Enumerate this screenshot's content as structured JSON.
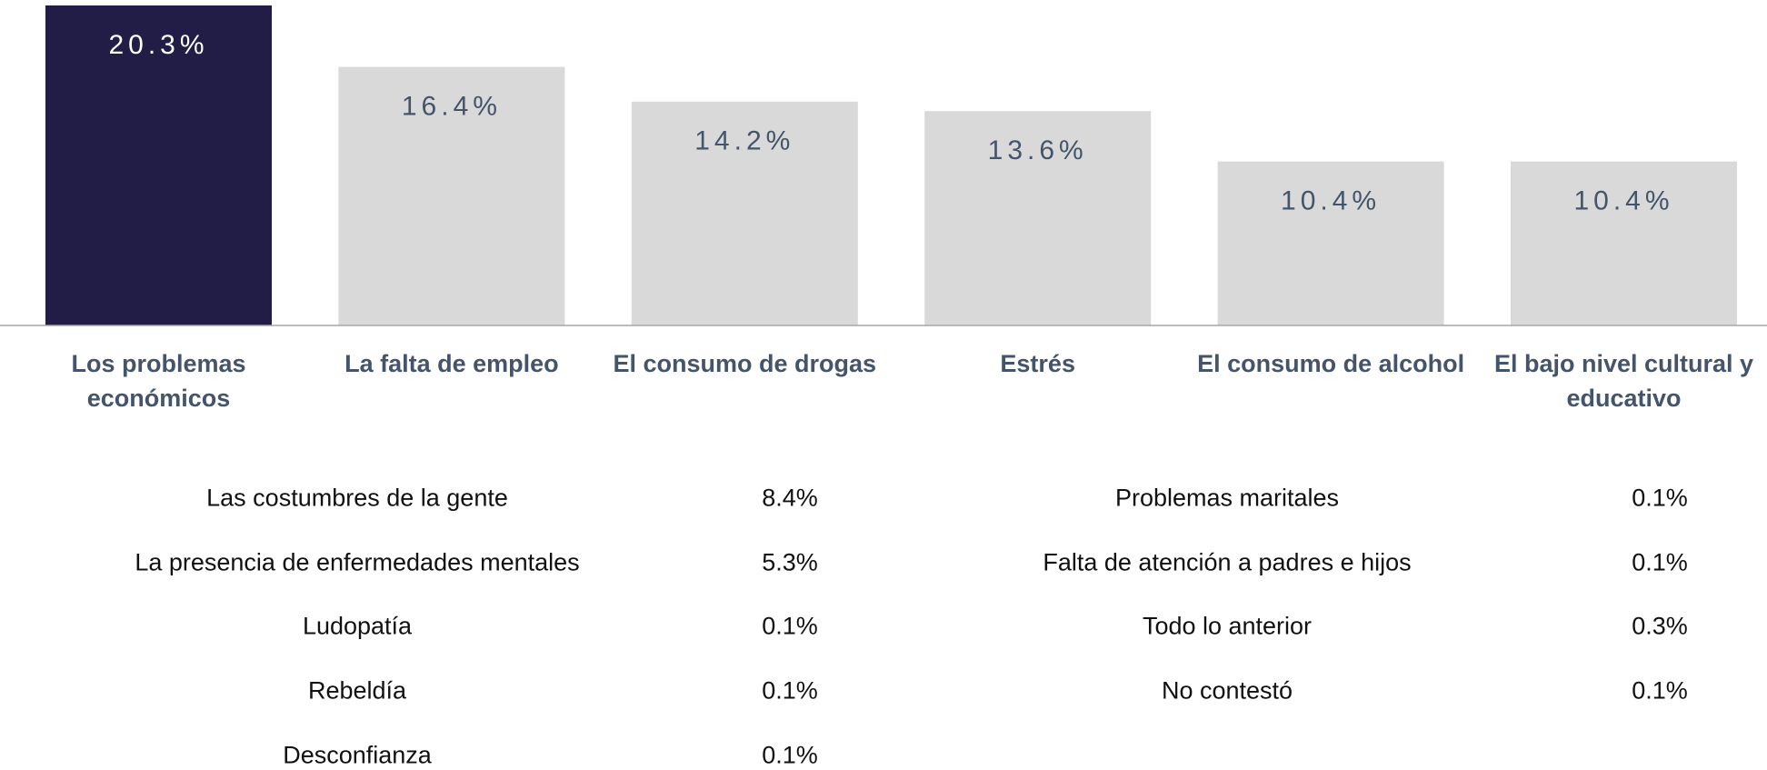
{
  "chart_data": {
    "type": "bar",
    "categories": [
      "Los problemas económicos",
      "La falta de empleo",
      "El consumo de drogas",
      "Estrés",
      "El consumo de alcohol",
      "El bajo nivel cultural y educativo"
    ],
    "values": [
      20.3,
      16.4,
      14.2,
      13.6,
      10.4,
      10.4
    ],
    "value_labels": [
      "20.3%",
      "16.4%",
      "14.2%",
      "13.6%",
      "10.4%",
      "10.4%"
    ],
    "colors": [
      "#221d46",
      "#d9d9d9",
      "#d9d9d9",
      "#d9d9d9",
      "#d9d9d9",
      "#d9d9d9"
    ]
  },
  "table": {
    "left": [
      {
        "label": "Las costumbres de la gente",
        "value": "8.4%"
      },
      {
        "label": "La presencia de enfermedades mentales",
        "value": "5.3%"
      },
      {
        "label": "Ludopatía",
        "value": "0.1%"
      },
      {
        "label": "Rebeldía",
        "value": "0.1%"
      },
      {
        "label": "Desconfianza",
        "value": "0.1%"
      }
    ],
    "right": [
      {
        "label": "Problemas maritales",
        "value": "0.1%"
      },
      {
        "label": "Falta de atención a padres e hijos",
        "value": "0.1%"
      },
      {
        "label": "Todo lo anterior",
        "value": "0.3%"
      },
      {
        "label": "No contestó",
        "value": "0.1%"
      }
    ]
  }
}
